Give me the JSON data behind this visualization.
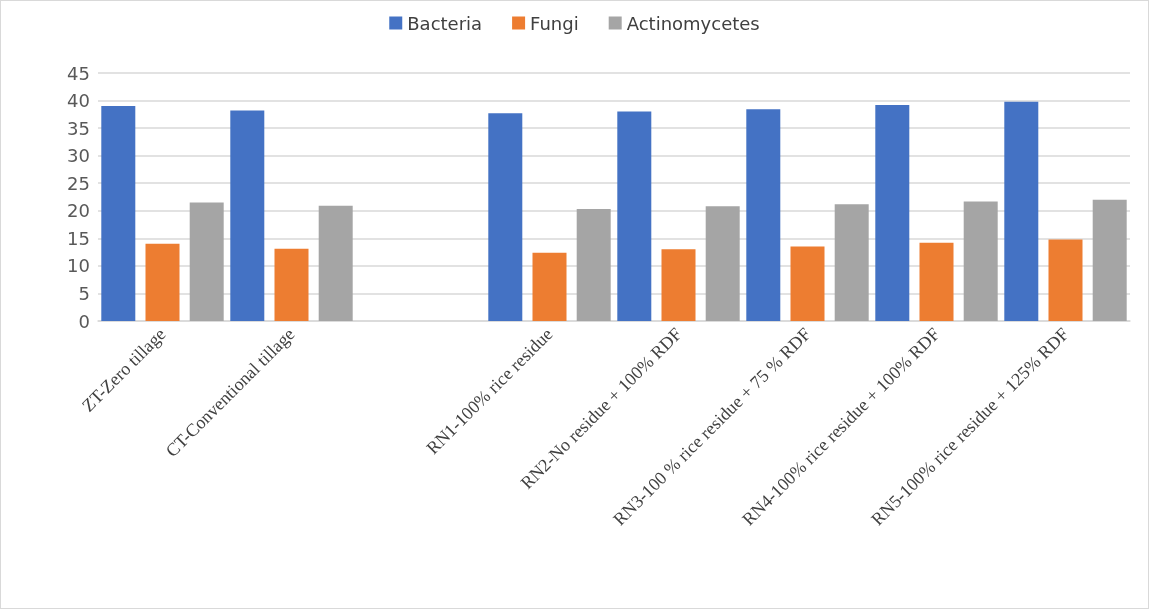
{
  "chart_data": {
    "type": "bar",
    "categories": [
      "ZT-Zero tillage",
      "CT-Conventional tillage",
      null,
      "RN1-100% rice residue",
      "RN2-No residue + 100% RDF",
      "RN3-100 % rice residue + 75 % RDF",
      "RN4-100% rice residue + 100% RDF",
      "RN5-100% rice residue + 125% RDF"
    ],
    "series": [
      {
        "name": "Bacteria",
        "color": "#4472c4",
        "values": [
          39.0,
          38.2,
          null,
          37.7,
          38.0,
          38.4,
          39.2,
          39.8
        ]
      },
      {
        "name": "Fungi",
        "color": "#ed7d31",
        "values": [
          14.0,
          13.1,
          null,
          12.4,
          13.0,
          13.5,
          14.2,
          14.8
        ]
      },
      {
        "name": "Actinomycetes",
        "color": "#a5a5a5",
        "values": [
          21.5,
          20.9,
          null,
          20.3,
          20.8,
          21.2,
          21.7,
          22.0
        ]
      }
    ],
    "ylim": [
      0,
      45
    ],
    "yticks": [
      0,
      5,
      10,
      15,
      20,
      25,
      30,
      35,
      40,
      45
    ],
    "grid": "y",
    "legend": "top"
  }
}
